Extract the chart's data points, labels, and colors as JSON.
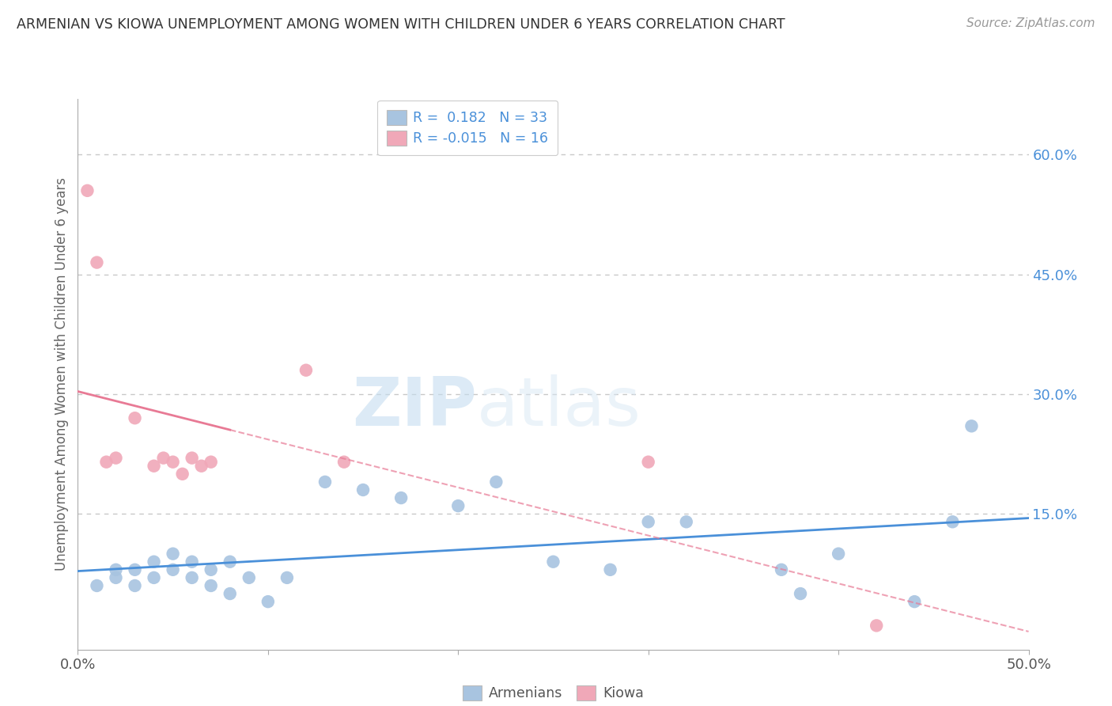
{
  "title": "ARMENIAN VS KIOWA UNEMPLOYMENT AMONG WOMEN WITH CHILDREN UNDER 6 YEARS CORRELATION CHART",
  "source": "Source: ZipAtlas.com",
  "ylabel": "Unemployment Among Women with Children Under 6 years",
  "xlim": [
    0.0,
    0.5
  ],
  "ylim": [
    -0.02,
    0.67
  ],
  "xticks": [
    0.0,
    0.1,
    0.2,
    0.3,
    0.4,
    0.5
  ],
  "xtick_labels": [
    "0.0%",
    "",
    "",
    "",
    "",
    "50.0%"
  ],
  "ytick_labels_right": [
    "15.0%",
    "30.0%",
    "45.0%",
    "60.0%"
  ],
  "ytick_values_right": [
    0.15,
    0.3,
    0.45,
    0.6
  ],
  "armenian_color": "#a8c4e0",
  "kiowa_color": "#f0a8b8",
  "armenian_line_color": "#4a90d9",
  "kiowa_line_color": "#e87a95",
  "watermark_zip": "ZIP",
  "watermark_atlas": "atlas",
  "legend_R_armenian": "0.182",
  "legend_N_armenian": "33",
  "legend_R_kiowa": "-0.015",
  "legend_N_kiowa": "16",
  "armenian_x": [
    0.01,
    0.02,
    0.02,
    0.03,
    0.03,
    0.04,
    0.04,
    0.05,
    0.05,
    0.06,
    0.06,
    0.07,
    0.07,
    0.08,
    0.08,
    0.09,
    0.1,
    0.11,
    0.13,
    0.15,
    0.17,
    0.2,
    0.22,
    0.25,
    0.28,
    0.3,
    0.32,
    0.37,
    0.38,
    0.4,
    0.44,
    0.46,
    0.47
  ],
  "armenian_y": [
    0.06,
    0.07,
    0.08,
    0.06,
    0.08,
    0.07,
    0.09,
    0.08,
    0.1,
    0.07,
    0.09,
    0.06,
    0.08,
    0.09,
    0.05,
    0.07,
    0.04,
    0.07,
    0.19,
    0.18,
    0.17,
    0.16,
    0.19,
    0.09,
    0.08,
    0.14,
    0.14,
    0.08,
    0.05,
    0.1,
    0.04,
    0.14,
    0.26
  ],
  "kiowa_x": [
    0.005,
    0.01,
    0.015,
    0.02,
    0.03,
    0.04,
    0.045,
    0.05,
    0.055,
    0.06,
    0.065,
    0.07,
    0.12,
    0.14,
    0.3,
    0.42
  ],
  "kiowa_y": [
    0.555,
    0.465,
    0.215,
    0.22,
    0.27,
    0.21,
    0.22,
    0.215,
    0.2,
    0.22,
    0.21,
    0.215,
    0.33,
    0.215,
    0.215,
    0.01
  ],
  "background_color": "#ffffff",
  "grid_color": "#c8c8c8"
}
